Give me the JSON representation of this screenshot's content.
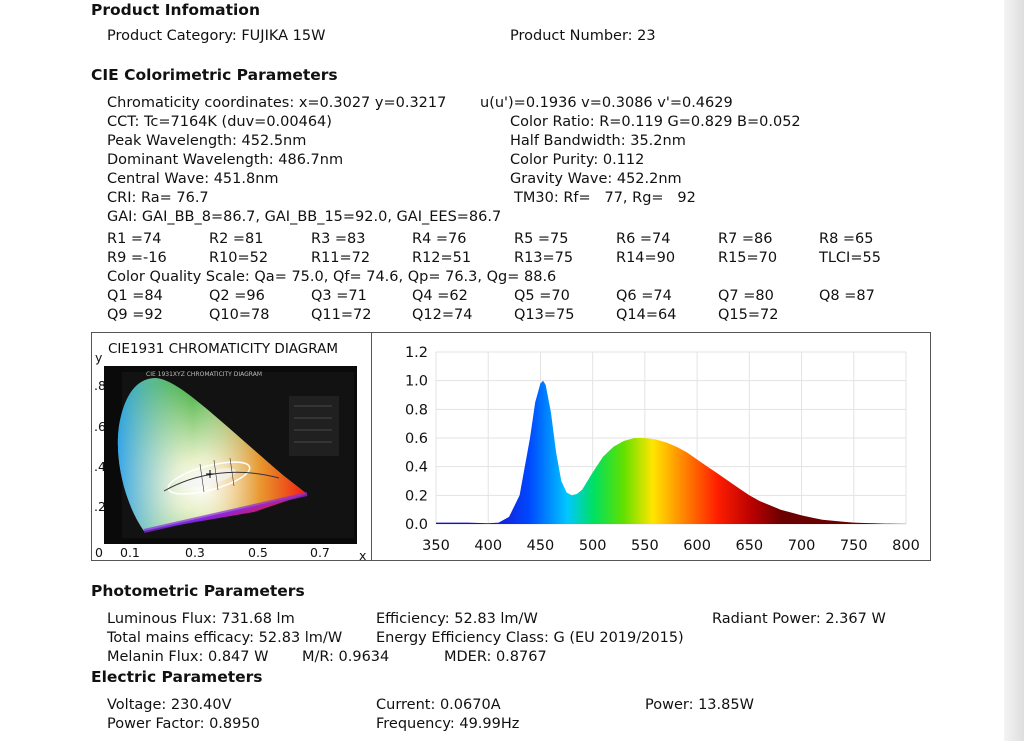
{
  "product": {
    "header": "Product Infomation",
    "category": "Product Category: FUJIKA 15W",
    "number": "Product Number: 23"
  },
  "cie": {
    "header": "CIE Colorimetric Parameters",
    "chromaticity": "Chromaticity coordinates: x=0.3027 y=0.3217",
    "uv": "u(u')=0.1936 v=0.3086 v'=0.4629",
    "cct": "CCT: Tc=7164K (duv=0.00464)",
    "color_ratio": "Color Ratio: R=0.119  G=0.829  B=0.052",
    "peak": "Peak Wavelength: 452.5nm",
    "half_bw": "Half Bandwidth: 35.2nm",
    "dominant": "Dominant Wavelength: 486.7nm",
    "purity": "Color Purity: 0.112",
    "central": "Central Wave: 451.8nm",
    "gravity": "Gravity Wave: 452.2nm",
    "cri": "CRI: Ra= 76.7",
    "tm30": "TM30: Rf=   77, Rg=   92",
    "gai": "GAI: GAI_BB_8=86.7, GAI_BB_15=92.0, GAI_EES=86.7",
    "r_row1": [
      "R1 =74",
      "R2 =81",
      "R3 =83",
      "R4 =76",
      "R5 =75",
      "R6 =74",
      "R7 =86",
      "R8 =65"
    ],
    "r_row2": [
      "R9 =-16",
      "R10=52",
      "R11=72",
      "R12=51",
      "R13=75",
      "R14=90",
      "R15=70",
      "TLCI=55"
    ],
    "cqs": "Color Quality Scale: Qa= 75.0, Qf= 74.6, Qp= 76.3, Qg= 88.6",
    "q_row1": [
      "Q1 =84",
      "Q2 =96",
      "Q3 =71",
      "Q4 =62",
      "Q5 =70",
      "Q6 =74",
      "Q7 =80",
      "Q8 =87"
    ],
    "q_row2": [
      "Q9 =92",
      "Q10=78",
      "Q11=72",
      "Q12=74",
      "Q13=75",
      "Q14=64",
      "Q15=72"
    ]
  },
  "cie_diagram": {
    "title": "CIE1931 CHROMATICITY DIAGRAM",
    "inner_title": "CIE 1931XYZ CHROMATICITY DIAGRAM",
    "y_label": "y",
    "x_label": "x",
    "y_ticks": [
      ".8",
      ".6",
      ".4",
      ".2"
    ],
    "x_ticks": [
      "0",
      "0.1",
      "0.3",
      "0.5",
      "0.7"
    ],
    "point": {
      "x": 0.3027,
      "y": 0.3217
    }
  },
  "chart_data": {
    "type": "area",
    "title": "",
    "xlabel": "",
    "ylabel": "",
    "xlim": [
      350,
      800
    ],
    "ylim": [
      0,
      1.2
    ],
    "x_ticks": [
      "350",
      "400",
      "450",
      "500",
      "550",
      "600",
      "650",
      "700",
      "750",
      "800"
    ],
    "y_ticks": [
      "0.0",
      "0.2",
      "0.4",
      "0.6",
      "0.8",
      "1.0",
      "1.2"
    ],
    "grid": true,
    "x": [
      350,
      380,
      400,
      410,
      420,
      430,
      440,
      445,
      450,
      452.5,
      455,
      460,
      465,
      470,
      475,
      480,
      485,
      490,
      500,
      510,
      520,
      530,
      540,
      550,
      560,
      570,
      580,
      590,
      600,
      610,
      620,
      630,
      640,
      650,
      660,
      670,
      680,
      690,
      700,
      710,
      720,
      730,
      740,
      750,
      760,
      770,
      780,
      790,
      800
    ],
    "values": [
      0.01,
      0.01,
      0.005,
      0.01,
      0.05,
      0.2,
      0.6,
      0.85,
      0.98,
      1.0,
      0.97,
      0.78,
      0.5,
      0.3,
      0.22,
      0.2,
      0.21,
      0.24,
      0.36,
      0.47,
      0.54,
      0.58,
      0.6,
      0.6,
      0.59,
      0.57,
      0.54,
      0.5,
      0.45,
      0.4,
      0.35,
      0.3,
      0.25,
      0.2,
      0.16,
      0.13,
      0.1,
      0.08,
      0.06,
      0.045,
      0.03,
      0.022,
      0.015,
      0.01,
      0.007,
      0.005,
      0.003,
      0.002,
      0.001
    ]
  },
  "photometric": {
    "header": "Photometric Parameters",
    "flux": "Luminous Flux: 731.68 lm",
    "efficiency": "Efficiency: 52.83 lm/W",
    "radiant": "Radiant Power: 2.367 W",
    "mains": "Total mains efficacy: 52.83 lm/W",
    "energy_class": "Energy Efficiency Class: G (EU 2019/2015)",
    "melanin": "Melanin Flux: 0.847 W",
    "mr": "M/R: 0.9634",
    "mder": "MDER: 0.8767"
  },
  "electric": {
    "header": "Electric Parameters",
    "voltage": "Voltage: 230.40V",
    "current": "Current: 0.0670A",
    "power": "Power: 13.85W",
    "pf": "Power Factor: 0.8950",
    "frequency": "Frequency: 49.99Hz"
  }
}
